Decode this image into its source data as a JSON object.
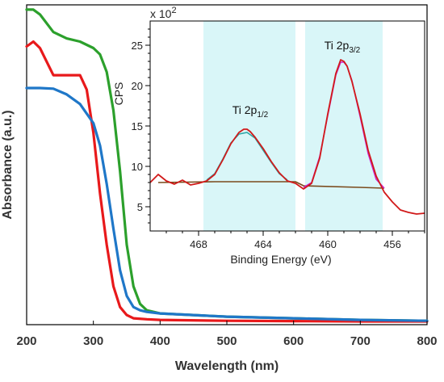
{
  "chart_data": [
    {
      "type": "line",
      "xlabel": "Wavelength (nm)",
      "ylabel": "Absorbance (a.u.)",
      "xlim": [
        200,
        800
      ],
      "ylim": [
        0,
        1
      ],
      "x_ticks": [
        "200",
        "300",
        "400",
        "500",
        "600",
        "700",
        "800"
      ],
      "y_ticks_shown": false,
      "series": [
        {
          "color": "#2ca02c",
          "x": [
            200,
            210,
            220,
            240,
            260,
            280,
            300,
            310,
            320,
            330,
            340,
            350,
            360,
            370,
            380,
            400,
            450,
            500,
            600,
            700,
            800
          ],
          "y": [
            0.985,
            0.985,
            0.97,
            0.915,
            0.895,
            0.885,
            0.865,
            0.845,
            0.79,
            0.67,
            0.48,
            0.25,
            0.12,
            0.065,
            0.045,
            0.035,
            0.03,
            0.025,
            0.02,
            0.015,
            0.012
          ]
        },
        {
          "color": "#e8191b",
          "x": [
            200,
            210,
            220,
            240,
            260,
            280,
            290,
            300,
            310,
            320,
            330,
            340,
            350,
            360,
            380,
            400,
            500,
            600,
            700,
            800
          ],
          "y": [
            0.87,
            0.885,
            0.865,
            0.78,
            0.78,
            0.78,
            0.735,
            0.6,
            0.41,
            0.25,
            0.12,
            0.055,
            0.03,
            0.02,
            0.017,
            0.015,
            0.012,
            0.011,
            0.01,
            0.01
          ]
        },
        {
          "color": "#1f77c8",
          "x": [
            200,
            220,
            240,
            260,
            280,
            300,
            310,
            320,
            330,
            340,
            350,
            360,
            370,
            380,
            400,
            450,
            500,
            600,
            700,
            800
          ],
          "y": [
            0.74,
            0.74,
            0.738,
            0.72,
            0.69,
            0.63,
            0.56,
            0.44,
            0.3,
            0.17,
            0.09,
            0.055,
            0.045,
            0.04,
            0.035,
            0.03,
            0.025,
            0.02,
            0.015,
            0.012
          ]
        }
      ]
    },
    {
      "type": "line",
      "xlabel": "Binding Energy (eV)",
      "ylabel": "CPS",
      "multiplier_label": "x 10",
      "multiplier_exponent": "2",
      "xlim": [
        471,
        454
      ],
      "ylim": [
        2,
        28
      ],
      "x_ticks": [
        "468",
        "464",
        "460",
        "456"
      ],
      "y_ticks": [
        "5",
        "10",
        "15",
        "20",
        "25"
      ],
      "shaded_regions": [
        [
          467.7,
          462.0
        ],
        [
          461.4,
          456.6
        ]
      ],
      "shade_color": "#d9f6f8",
      "annotations": [
        {
          "text": "Ti 2p",
          "subscript": "1/2",
          "x": 464.8,
          "y": 16.5
        },
        {
          "text": "Ti 2p",
          "subscript": "3/2",
          "x": 459.1,
          "y": 24.5
        }
      ],
      "series": [
        {
          "color": "#d11a1a",
          "x": [
            471,
            470.5,
            470,
            469.5,
            469,
            468.5,
            468,
            467.5,
            467,
            466.5,
            466,
            465.5,
            465.2,
            465,
            464.8,
            464.5,
            464,
            463.5,
            463,
            462.5,
            462,
            461.5,
            461,
            460.5,
            460,
            459.5,
            459.2,
            459,
            458.8,
            458.5,
            458,
            457.5,
            457,
            456.5,
            456,
            455.5,
            455,
            454.5,
            454
          ],
          "y": [
            8.0,
            9.0,
            8.2,
            7.8,
            8.3,
            7.7,
            7.9,
            8.2,
            9.0,
            10.8,
            12.8,
            14.2,
            14.6,
            14.6,
            14.3,
            13.6,
            12.2,
            10.6,
            9.2,
            8.2,
            7.9,
            7.2,
            7.9,
            11.0,
            16.5,
            21.5,
            23.2,
            23.0,
            22.4,
            20.5,
            16.5,
            12.0,
            8.8,
            6.8,
            5.6,
            4.6,
            4.3,
            4.1,
            4.2
          ]
        },
        {
          "color": "#cc22cc",
          "x": [
            461.5,
            461,
            460.5,
            460,
            459.5,
            459.2,
            459,
            458.8,
            458.5,
            458,
            457.5,
            457,
            456.5
          ],
          "y": [
            7.4,
            8.0,
            11.2,
            16.3,
            21.3,
            22.9,
            22.9,
            22.4,
            20.6,
            16.2,
            11.6,
            8.4,
            7.3
          ]
        },
        {
          "color": "#2aa5a5",
          "x": [
            467.5,
            467,
            466.5,
            466,
            465.5,
            465,
            464.5,
            464,
            463.5,
            463,
            462.5
          ],
          "y": [
            8.3,
            9.1,
            10.9,
            12.9,
            14.0,
            14.2,
            13.5,
            12.0,
            10.5,
            9.1,
            8.3
          ]
        },
        {
          "color": "#7a4a1c",
          "x": [
            470.5,
            467,
            462,
            461.5,
            458,
            456.5
          ],
          "y": [
            8.0,
            8.1,
            8.1,
            7.6,
            7.4,
            7.3
          ]
        }
      ]
    }
  ]
}
